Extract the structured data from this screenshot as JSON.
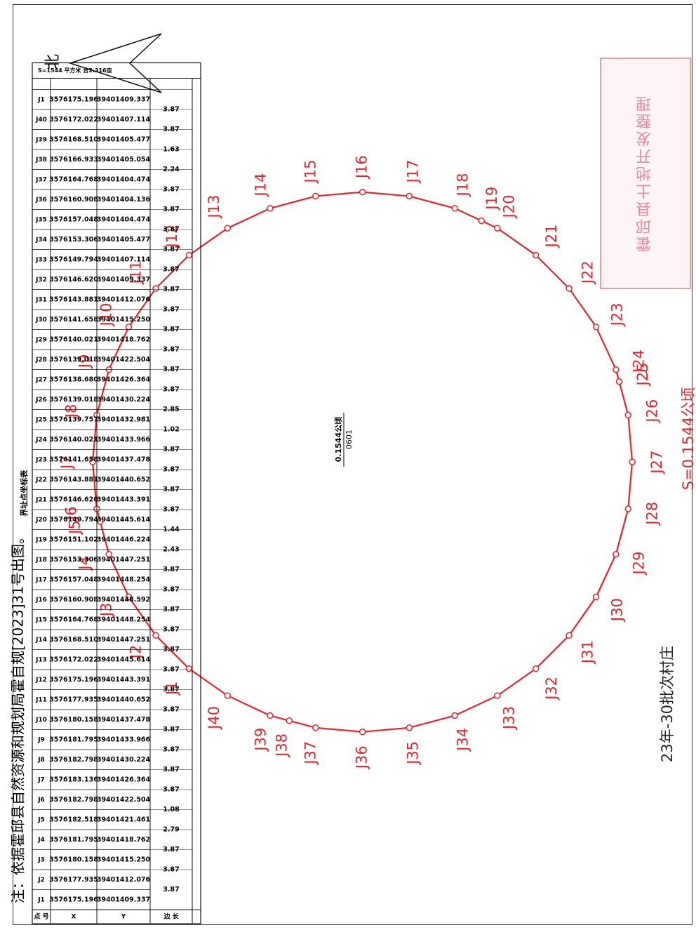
{
  "note": "注：依据霍邱县自然资源和规划局霍自规[2023]31号出图。",
  "north_label": "北",
  "parcel": {
    "area_label": "0.1544公顷",
    "id": "0601"
  },
  "parcel_name": "23年-30批次村庄",
  "area_summary": "S=0.1544公顷",
  "stamp_text": "霍邱县土地开发整理",
  "table": {
    "title": "界址点坐标表",
    "headers": [
      "点 号",
      "X",
      "Y",
      "边 长"
    ],
    "rows": [
      [
        "J1",
        "3576175.196",
        "39401409.337"
      ],
      [
        "J2",
        "3576177.935",
        "39401412.076",
        "3.87"
      ],
      [
        "J3",
        "3576180.158",
        "39401415.250",
        "3.87"
      ],
      [
        "J4",
        "3576181.795",
        "39401418.762",
        "3.87"
      ],
      [
        "J5",
        "3576182.518",
        "39401421.461",
        "2.79"
      ],
      [
        "J6",
        "3576182.798",
        "39401422.504",
        "1.08"
      ],
      [
        "J7",
        "3576183.136",
        "39401426.364",
        "3.87"
      ],
      [
        "J8",
        "3576182.798",
        "39401430.224",
        "3.87"
      ],
      [
        "J9",
        "3576181.795",
        "39401433.966",
        "3.87"
      ],
      [
        "J10",
        "3576180.158",
        "39401437.478",
        "3.87"
      ],
      [
        "J11",
        "3576177.935",
        "39401440.652",
        "3.87"
      ],
      [
        "J12",
        "3576175.196",
        "39401443.391",
        "3.87"
      ],
      [
        "J13",
        "3576172.022",
        "39401445.614",
        "3.87"
      ],
      [
        "J14",
        "3576168.510",
        "39401447.251",
        "3.87"
      ],
      [
        "J15",
        "3576164.768",
        "39401448.254",
        "3.87"
      ],
      [
        "J16",
        "3576160.908",
        "39401448.592",
        "3.87"
      ],
      [
        "J17",
        "3576157.048",
        "39401448.254",
        "3.87"
      ],
      [
        "J18",
        "3576153.306",
        "39401447.251",
        "3.87"
      ],
      [
        "J19",
        "3576151.102",
        "39401446.224",
        "2.43"
      ],
      [
        "J20",
        "3576149.794",
        "39401445.614",
        "1.44"
      ],
      [
        "J21",
        "3576146.620",
        "39401443.391",
        "3.87"
      ],
      [
        "J22",
        "3576143.881",
        "39401440.652",
        "3.87"
      ],
      [
        "J23",
        "3576141.658",
        "39401437.478",
        "3.87"
      ],
      [
        "J24",
        "3576140.021",
        "39401433.966",
        "3.87"
      ],
      [
        "J25",
        "3576139.757",
        "39401432.981",
        "1.02"
      ],
      [
        "J26",
        "3576139.018",
        "39401430.224",
        "2.85"
      ],
      [
        "J27",
        "3576138.680",
        "39401426.364",
        "3.87"
      ],
      [
        "J28",
        "3576139.018",
        "39401422.504",
        "3.87"
      ],
      [
        "J29",
        "3576140.021",
        "39401418.762",
        "3.87"
      ],
      [
        "J30",
        "3576141.658",
        "39401415.250",
        "3.87"
      ],
      [
        "J31",
        "3576143.881",
        "39401412.076",
        "3.87"
      ],
      [
        "J32",
        "3576146.620",
        "39401409.337",
        "3.87"
      ],
      [
        "J33",
        "3576149.794",
        "39401407.114",
        "3.87"
      ],
      [
        "J34",
        "3576153.306",
        "39401405.477",
        "3.87"
      ],
      [
        "J35",
        "3576157.048",
        "39401404.474",
        "3.87"
      ],
      [
        "J36",
        "3576160.908",
        "39401404.136",
        "3.87"
      ],
      [
        "J37",
        "3576164.768",
        "39401404.474",
        "3.87"
      ],
      [
        "J38",
        "3576166.933",
        "39401405.054",
        "2.24"
      ],
      [
        "J39",
        "3576168.510",
        "39401405.477",
        "1.63"
      ],
      [
        "J40",
        "3576172.022",
        "39401407.114",
        "3.87"
      ],
      [
        "J1",
        "3576175.196",
        "39401409.337",
        "3.87"
      ]
    ],
    "footer": "S=1544 平方米 合2.316亩"
  },
  "colors": {
    "boundary": "#e5252b",
    "label": "#e5252b",
    "stamp": "#e48ca0"
  }
}
